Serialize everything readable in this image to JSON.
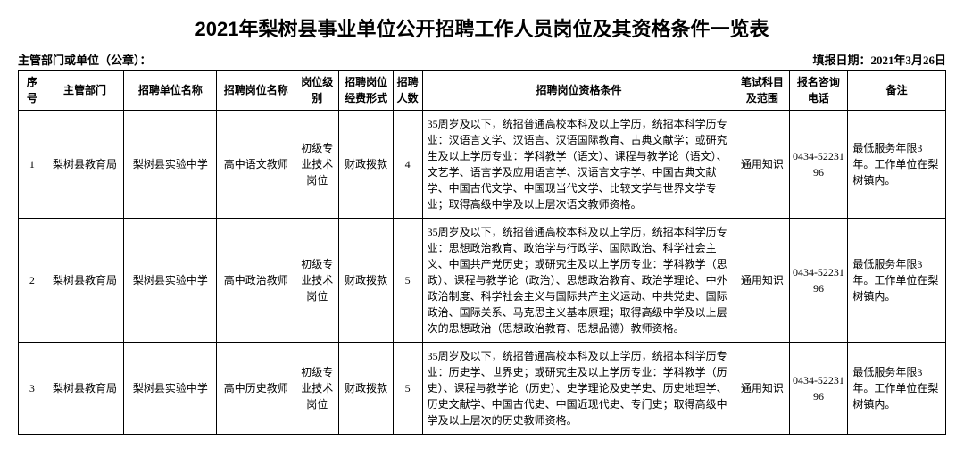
{
  "title": "2021年梨树县事业单位公开招聘工作人员岗位及其资格条件一览表",
  "meta": {
    "left_label": "主管部门或单位（公章）：",
    "right_label": "填报日期：",
    "right_value": "2021年3月26日"
  },
  "columns": {
    "seq": "序号",
    "dept": "主管部门",
    "unit": "招聘单位名称",
    "position": "招聘岗位名称",
    "level": "岗位级别",
    "fund": "招聘岗位经费形式",
    "count": "招聘人数",
    "qual": "招聘岗位资格条件",
    "exam": "笔试科目及范围",
    "phone": "报名咨询电话",
    "note": "备注"
  },
  "rows": [
    {
      "seq": "1",
      "dept": "梨树县教育局",
      "unit": "梨树县实验中学",
      "position": "高中语文教师",
      "level": "初级专业技术岗位",
      "fund": "财政拨款",
      "count": "4",
      "qual": "35周岁及以下，统招普通高校本科及以上学历，统招本科学历专业：汉语言文学、汉语言、汉语国际教育、古典文献学；或研究生及以上学历专业：学科教学（语文）、课程与教学论（语文）、文艺学、语言学及应用语言学、汉语言文字学、中国古典文献学、中国古代文学、中国现当代文学、比较文学与世界文学专业；取得高级中学及以上层次语文教师资格。",
      "exam": "通用知识",
      "phone": "0434-5223196",
      "note": "最低服务年限3年。工作单位在梨树镇内。"
    },
    {
      "seq": "2",
      "dept": "梨树县教育局",
      "unit": "梨树县实验中学",
      "position": "高中政治教师",
      "level": "初级专业技术岗位",
      "fund": "财政拨款",
      "count": "5",
      "qual": "35周岁及以下，统招普通高校本科及以上学历，统招本科学历专业：思想政治教育、政治学与行政学、国际政治、科学社会主义、中国共产党历史；或研究生及以上学历专业：学科教学（思政）、课程与教学论（政治）、思想政治教育、政治学理论、中外政治制度、科学社会主义与国际共产主义运动、中共党史、国际政治、国际关系、马克思主义基本原理；取得高级中学及以上层次的思想政治（思想政治教育、思想品德）教师资格。",
      "exam": "通用知识",
      "phone": "0434-5223196",
      "note": "最低服务年限3年。工作单位在梨树镇内。"
    },
    {
      "seq": "3",
      "dept": "梨树县教育局",
      "unit": "梨树县实验中学",
      "position": "高中历史教师",
      "level": "初级专业技术岗位",
      "fund": "财政拨款",
      "count": "5",
      "qual": "35周岁及以下，统招普通高校本科及以上学历，统招本科学历专业：历史学、世界史；或研究生及以上学历专业：学科教学（历史）、课程与教学论（历史）、史学理论及史学史、历史地理学、历史文献学、中国古代史、中国近现代史、专门史；取得高级中学及以上层次的历史教师资格。",
      "exam": "通用知识",
      "phone": "0434-5223196",
      "note": "最低服务年限3年。工作单位在梨树镇内。"
    }
  ]
}
